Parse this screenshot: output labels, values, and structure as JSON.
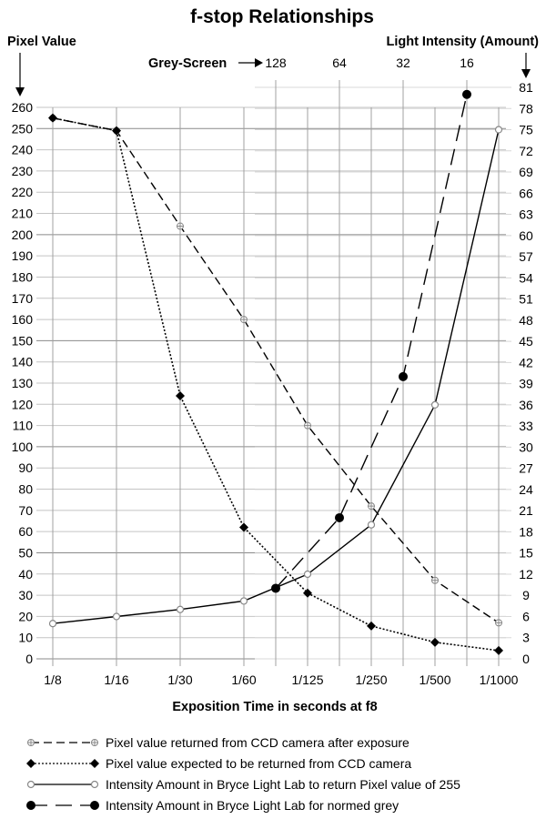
{
  "chart_data": {
    "type": "line",
    "title": "f-stop Relationships",
    "ylabel_left": "Pixel Value",
    "ylabel_right": "Light Intensity (Amount)",
    "xlabel": "Exposition Time in seconds at f8",
    "categories": [
      "1/8",
      "1/16",
      "1/30",
      "1/60",
      "1/125",
      "1/250",
      "1/500",
      "1/1000"
    ],
    "y_left": {
      "range": [
        0,
        260
      ],
      "ticks": [
        0,
        10,
        20,
        30,
        40,
        50,
        60,
        70,
        80,
        90,
        100,
        110,
        120,
        130,
        140,
        150,
        160,
        170,
        180,
        190,
        200,
        210,
        220,
        230,
        240,
        250,
        260
      ]
    },
    "y_right": {
      "range": [
        0,
        81
      ],
      "ticks": [
        0,
        3,
        6,
        9,
        12,
        15,
        18,
        21,
        24,
        27,
        30,
        33,
        36,
        39,
        42,
        45,
        48,
        51,
        54,
        57,
        60,
        63,
        66,
        69,
        72,
        75,
        78,
        81
      ]
    },
    "top_axis": {
      "label": "Grey-Screen",
      "values": [
        "128",
        "64",
        "32",
        "16"
      ],
      "x_positions": [
        3.5,
        4.5,
        5.5,
        6.5
      ]
    },
    "grid": true,
    "legend_position": "bottom",
    "series": [
      {
        "name": "Pixel value returned from CCD camera after exposure",
        "axis": "left",
        "style": "dashed",
        "marker": "plus",
        "x": [
          0,
          1,
          2,
          3,
          4,
          5,
          6,
          7
        ],
        "values": [
          255,
          249,
          204,
          160,
          110,
          72,
          37,
          17
        ]
      },
      {
        "name": "Pixel value expected to be returned from CCD camera",
        "axis": "left",
        "style": "dotted",
        "marker": "diamond",
        "x": [
          0,
          1,
          2,
          3,
          4,
          5,
          6,
          7
        ],
        "values": [
          255,
          249,
          124,
          62,
          31,
          15.5,
          7.8,
          3.9
        ]
      },
      {
        "name": "Intensity Amount in Bryce Light Lab to return Pixel value of 255",
        "axis": "right",
        "style": "solid",
        "marker": "circle-open",
        "x": [
          0,
          1,
          2,
          3,
          3.5,
          4,
          5,
          6,
          7
        ],
        "values": [
          5,
          6,
          7,
          8.2,
          null,
          12,
          19,
          36,
          75
        ]
      },
      {
        "name": "Intensity Amount in Bryce Light Lab for normed grey",
        "axis": "right",
        "style": "long-dash",
        "marker": "circle-filled",
        "x": [
          3.5,
          4.5,
          5.5,
          6.5
        ],
        "values": [
          10,
          20,
          40,
          80
        ]
      }
    ]
  }
}
